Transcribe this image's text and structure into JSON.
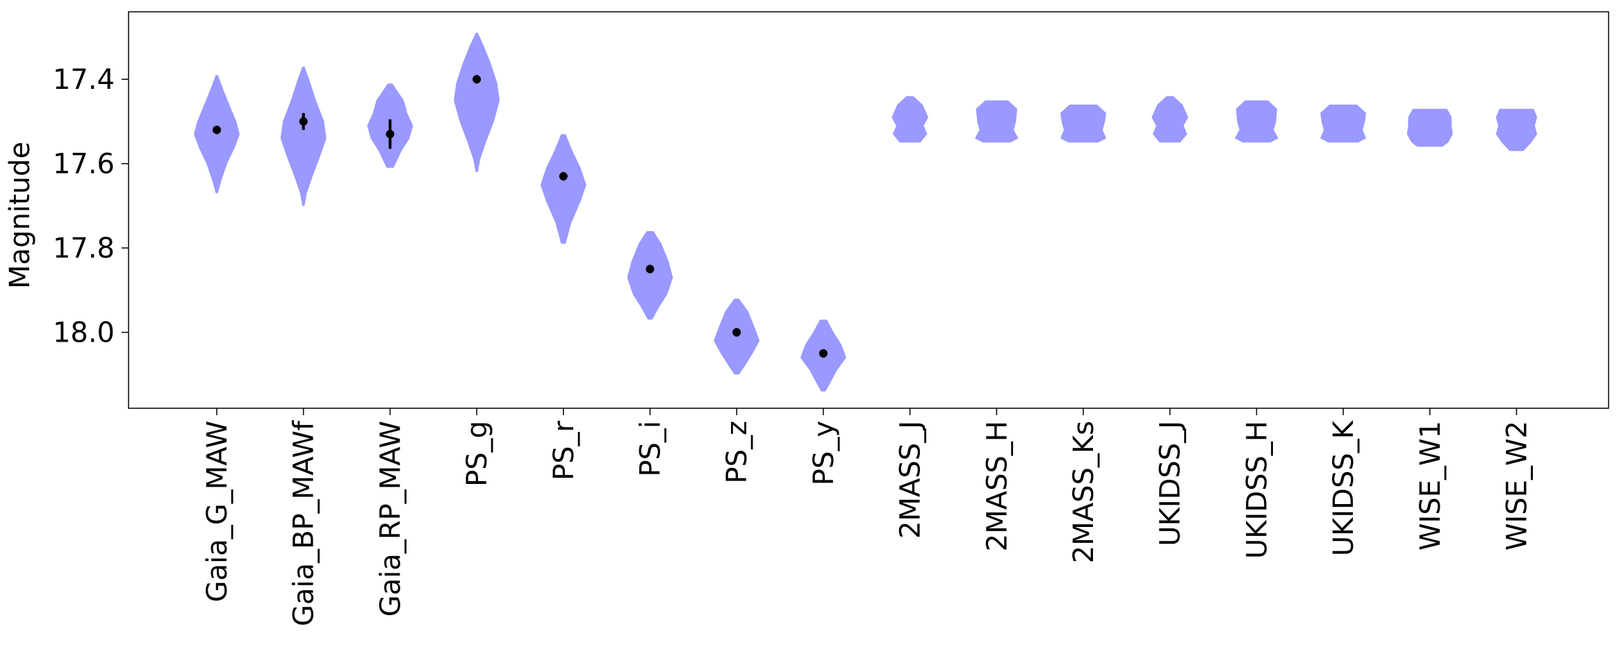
{
  "chart_data": {
    "type": "violin",
    "xlabel": "",
    "ylabel": "Magnitude",
    "ylim": [
      18.18,
      17.24
    ],
    "y_inverted": true,
    "yticks": [
      "17.4",
      "17.6",
      "17.8",
      "18.0"
    ],
    "ytick_values": [
      17.4,
      17.6,
      17.8,
      18.0
    ],
    "grid": false,
    "violin_color": "#9999ff",
    "marker_color": "#000000",
    "categories": [
      "Gaia_G_MAW",
      "Gaia_BP_MAWf",
      "Gaia_RP_MAW",
      "PS_g",
      "PS_r",
      "PS_i",
      "PS_z",
      "PS_y",
      "2MASS_J",
      "2MASS_H",
      "2MASS_Ks",
      "UKIDSS_J",
      "UKIDSS_H",
      "UKIDSS_K",
      "WISE_W1",
      "WISE_W2"
    ],
    "violins": [
      {
        "label": "Gaia_G_MAW",
        "range": [
          17.39,
          17.67
        ],
        "profile": [
          [
            17.39,
            0.05
          ],
          [
            17.42,
            0.25
          ],
          [
            17.46,
            0.55
          ],
          [
            17.5,
            0.85
          ],
          [
            17.53,
            1.0
          ],
          [
            17.56,
            0.8
          ],
          [
            17.6,
            0.45
          ],
          [
            17.64,
            0.2
          ],
          [
            17.67,
            0.05
          ]
        ],
        "mean": 17.52,
        "err": 0.01
      },
      {
        "label": "Gaia_BP_MAWf",
        "range": [
          17.37,
          17.7
        ],
        "profile": [
          [
            17.37,
            0.05
          ],
          [
            17.4,
            0.25
          ],
          [
            17.45,
            0.55
          ],
          [
            17.5,
            0.9
          ],
          [
            17.54,
            1.0
          ],
          [
            17.58,
            0.75
          ],
          [
            17.63,
            0.4
          ],
          [
            17.67,
            0.15
          ],
          [
            17.7,
            0.05
          ]
        ],
        "mean": 17.5,
        "err": 0.02
      },
      {
        "label": "Gaia_RP_MAW",
        "range": [
          17.41,
          17.61
        ],
        "profile": [
          [
            17.41,
            0.1
          ],
          [
            17.45,
            0.6
          ],
          [
            17.48,
            0.75
          ],
          [
            17.51,
            1.0
          ],
          [
            17.54,
            0.85
          ],
          [
            17.57,
            0.5
          ],
          [
            17.61,
            0.15
          ]
        ],
        "mean": 17.53,
        "err": 0.035
      },
      {
        "label": "PS_g",
        "range": [
          17.29,
          17.62
        ],
        "profile": [
          [
            17.29,
            0.05
          ],
          [
            17.32,
            0.3
          ],
          [
            17.36,
            0.6
          ],
          [
            17.41,
            0.9
          ],
          [
            17.45,
            1.0
          ],
          [
            17.5,
            0.75
          ],
          [
            17.55,
            0.4
          ],
          [
            17.59,
            0.15
          ],
          [
            17.62,
            0.05
          ]
        ],
        "mean": 17.4,
        "err": 0.01
      },
      {
        "label": "PS_r",
        "range": [
          17.53,
          17.79
        ],
        "profile": [
          [
            17.53,
            0.1
          ],
          [
            17.57,
            0.4
          ],
          [
            17.61,
            0.75
          ],
          [
            17.65,
            1.0
          ],
          [
            17.69,
            0.75
          ],
          [
            17.74,
            0.35
          ],
          [
            17.79,
            0.1
          ]
        ],
        "mean": 17.63,
        "err": 0.01
      },
      {
        "label": "PS_i",
        "range": [
          17.76,
          17.97
        ],
        "profile": [
          [
            17.76,
            0.15
          ],
          [
            17.79,
            0.5
          ],
          [
            17.83,
            0.8
          ],
          [
            17.87,
            1.0
          ],
          [
            17.91,
            0.75
          ],
          [
            17.94,
            0.4
          ],
          [
            17.97,
            0.1
          ]
        ],
        "mean": 17.85,
        "err": 0.01
      },
      {
        "label": "PS_z",
        "range": [
          17.92,
          18.1
        ],
        "profile": [
          [
            17.92,
            0.1
          ],
          [
            17.95,
            0.5
          ],
          [
            17.99,
            0.8
          ],
          [
            18.02,
            1.0
          ],
          [
            18.05,
            0.7
          ],
          [
            18.08,
            0.35
          ],
          [
            18.1,
            0.1
          ]
        ],
        "mean": 18.0,
        "err": 0.01
      },
      {
        "label": "PS_y",
        "range": [
          17.97,
          18.14
        ],
        "profile": [
          [
            17.97,
            0.15
          ],
          [
            18.0,
            0.45
          ],
          [
            18.03,
            0.8
          ],
          [
            18.06,
            1.0
          ],
          [
            18.09,
            0.6
          ],
          [
            18.12,
            0.3
          ],
          [
            18.14,
            0.1
          ]
        ],
        "mean": 18.05,
        "err": 0.01
      },
      {
        "label": "2MASS_J",
        "range": [
          17.44,
          17.55
        ],
        "profile": [
          [
            17.44,
            0.15
          ],
          [
            17.46,
            0.55
          ],
          [
            17.49,
            0.8
          ],
          [
            17.51,
            0.6
          ],
          [
            17.53,
            0.75
          ],
          [
            17.55,
            0.45
          ]
        ]
      },
      {
        "label": "2MASS_H",
        "range": [
          17.45,
          17.55
        ],
        "profile": [
          [
            17.45,
            0.5
          ],
          [
            17.47,
            0.9
          ],
          [
            17.5,
            0.85
          ],
          [
            17.52,
            0.75
          ],
          [
            17.54,
            0.95
          ],
          [
            17.55,
            0.6
          ]
        ]
      },
      {
        "label": "2MASS_Ks",
        "range": [
          17.46,
          17.55
        ],
        "profile": [
          [
            17.46,
            0.6
          ],
          [
            17.48,
            1.0
          ],
          [
            17.5,
            0.95
          ],
          [
            17.52,
            0.85
          ],
          [
            17.54,
            1.0
          ],
          [
            17.55,
            0.65
          ]
        ]
      },
      {
        "label": "UKIDSS_J",
        "range": [
          17.44,
          17.55
        ],
        "profile": [
          [
            17.44,
            0.15
          ],
          [
            17.46,
            0.55
          ],
          [
            17.49,
            0.8
          ],
          [
            17.51,
            0.6
          ],
          [
            17.53,
            0.75
          ],
          [
            17.55,
            0.45
          ]
        ]
      },
      {
        "label": "UKIDSS_H",
        "range": [
          17.45,
          17.55
        ],
        "profile": [
          [
            17.45,
            0.5
          ],
          [
            17.47,
            0.9
          ],
          [
            17.5,
            0.85
          ],
          [
            17.52,
            0.75
          ],
          [
            17.54,
            0.95
          ],
          [
            17.55,
            0.6
          ]
        ]
      },
      {
        "label": "UKIDSS_K",
        "range": [
          17.46,
          17.55
        ],
        "profile": [
          [
            17.46,
            0.6
          ],
          [
            17.48,
            1.0
          ],
          [
            17.5,
            0.95
          ],
          [
            17.52,
            0.85
          ],
          [
            17.54,
            1.0
          ],
          [
            17.55,
            0.65
          ]
        ]
      },
      {
        "label": "WISE_W1",
        "range": [
          17.47,
          17.56
        ],
        "profile": [
          [
            17.47,
            0.75
          ],
          [
            17.49,
            0.95
          ],
          [
            17.51,
            0.95
          ],
          [
            17.53,
            1.0
          ],
          [
            17.55,
            0.8
          ],
          [
            17.56,
            0.55
          ]
        ]
      },
      {
        "label": "WISE_W2",
        "range": [
          17.47,
          17.57
        ],
        "profile": [
          [
            17.47,
            0.75
          ],
          [
            17.49,
            0.9
          ],
          [
            17.51,
            0.8
          ],
          [
            17.53,
            0.9
          ],
          [
            17.55,
            0.65
          ],
          [
            17.57,
            0.3
          ]
        ]
      }
    ]
  }
}
